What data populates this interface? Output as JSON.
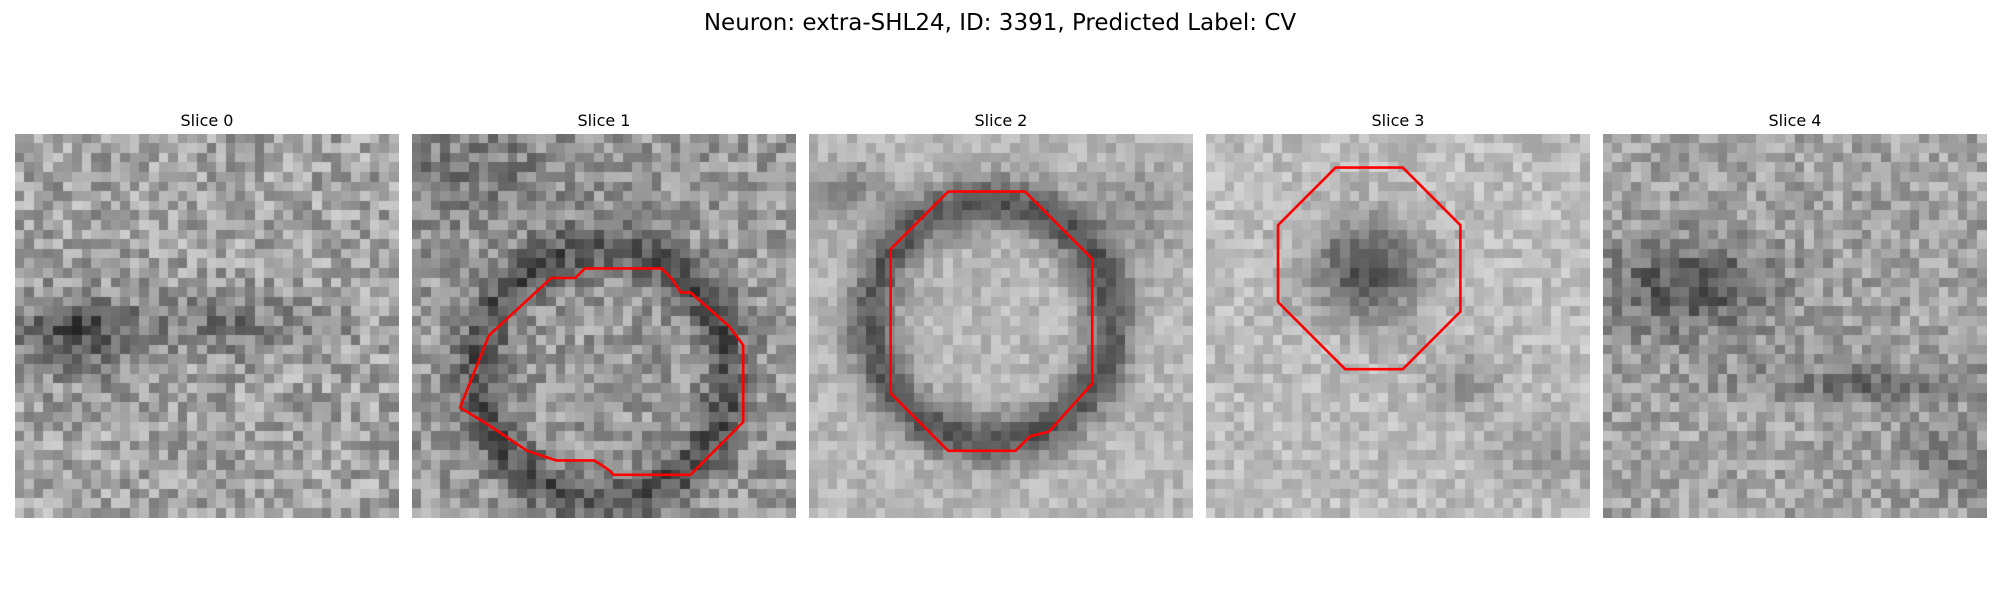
{
  "figure": {
    "title": "Neuron: extra-SHL24, ID: 3391, Predicted Label: CV"
  },
  "contour_color": "#ff0000",
  "colormap": "gray",
  "slices": [
    {
      "title": "Slice 0",
      "contour": []
    },
    {
      "title": "Slice 1",
      "contour": [
        [
          5.0,
          28.5
        ],
        [
          8.0,
          21.0
        ],
        [
          14.5,
          15.0
        ],
        [
          17.0,
          15.0
        ],
        [
          18.0,
          14.0
        ],
        [
          26.0,
          14.0
        ],
        [
          27.0,
          15.0
        ],
        [
          28.0,
          16.5
        ],
        [
          29.0,
          16.5
        ],
        [
          33.0,
          20.0
        ],
        [
          34.5,
          22.0
        ],
        [
          34.5,
          30.0
        ],
        [
          30.0,
          34.5
        ],
        [
          29.0,
          35.5
        ],
        [
          21.0,
          35.5
        ],
        [
          20.5,
          35.0
        ],
        [
          19.0,
          34.0
        ],
        [
          15.0,
          34.0
        ],
        [
          12.0,
          33.0
        ],
        [
          7.5,
          30.0
        ]
      ]
    },
    {
      "title": "Slice 2",
      "contour": [
        [
          8.5,
          12.0
        ],
        [
          14.5,
          6.0
        ],
        [
          22.5,
          6.0
        ],
        [
          29.5,
          13.0
        ],
        [
          29.5,
          26.0
        ],
        [
          25.0,
          31.0
        ],
        [
          23.0,
          31.5
        ],
        [
          21.5,
          33.0
        ],
        [
          14.5,
          33.0
        ],
        [
          8.5,
          27.0
        ]
      ]
    },
    {
      "title": "Slice 3",
      "contour": [
        [
          7.5,
          9.5
        ],
        [
          13.5,
          3.5
        ],
        [
          20.5,
          3.5
        ],
        [
          26.5,
          9.5
        ],
        [
          26.5,
          18.5
        ],
        [
          20.5,
          24.5
        ],
        [
          14.5,
          24.5
        ],
        [
          7.5,
          17.5
        ]
      ]
    },
    {
      "title": "Slice 4",
      "contour": []
    }
  ]
}
